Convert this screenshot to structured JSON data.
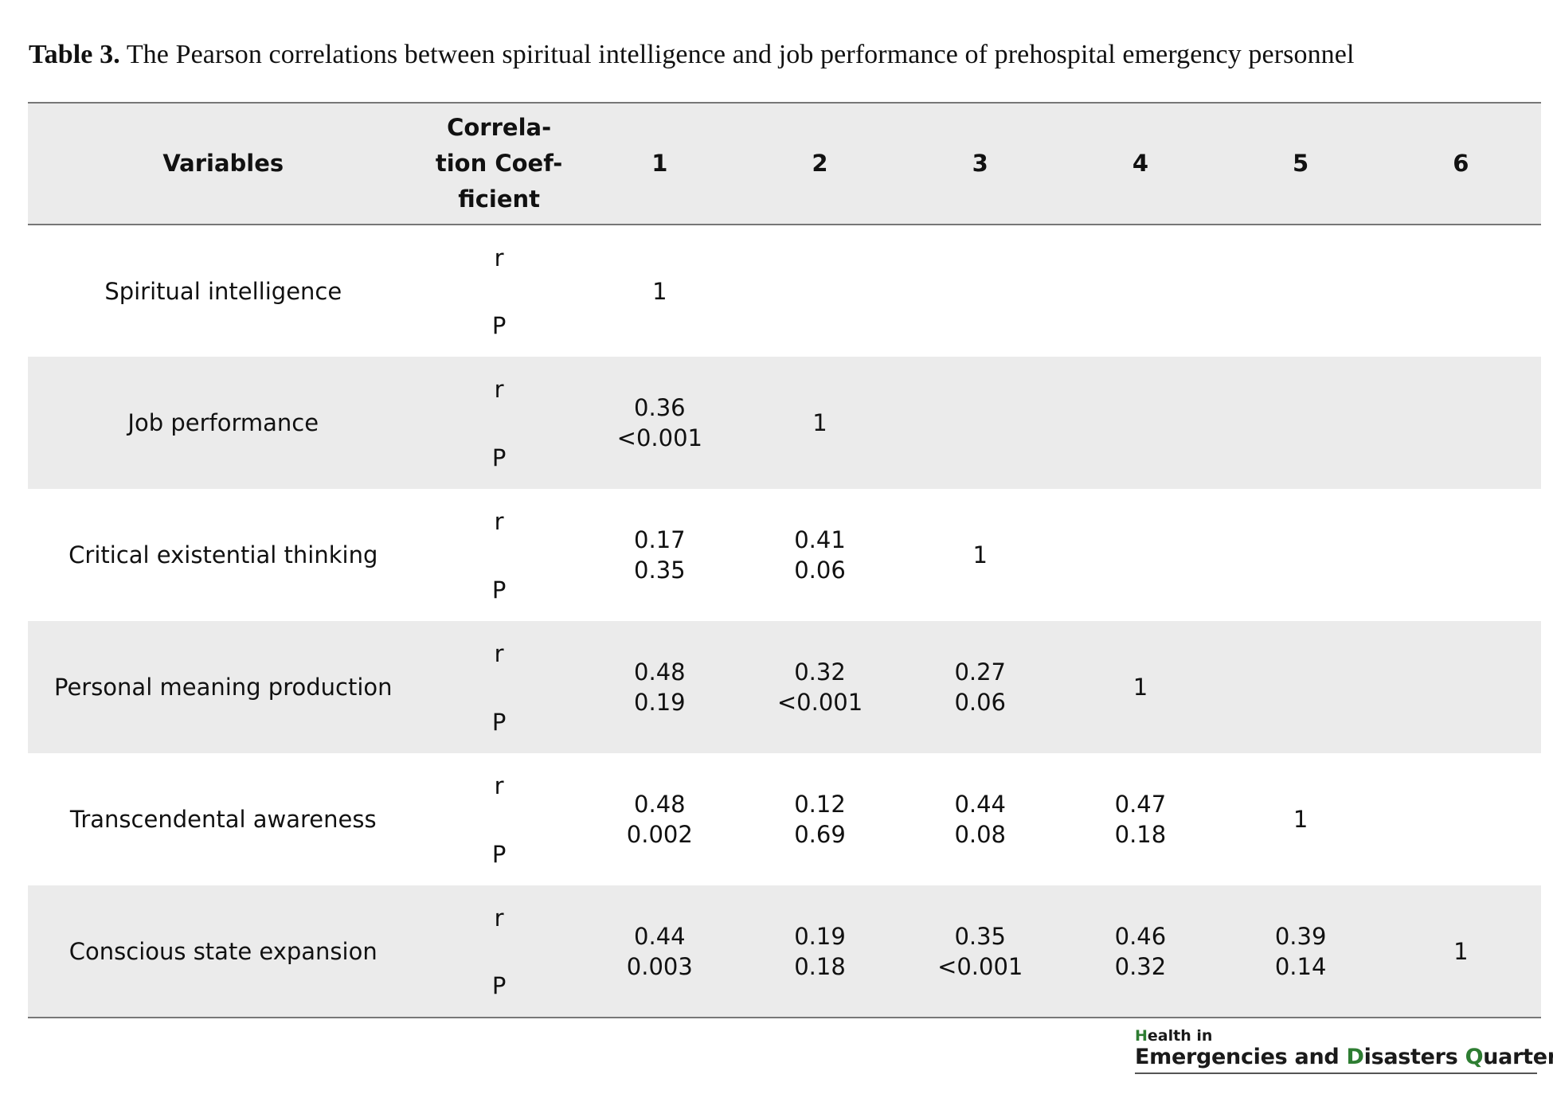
{
  "caption": {
    "label": "Table 3.",
    "text": "The Pearson correlations between spiritual intelligence and job performance of prehospital emergency personnel"
  },
  "table": {
    "headers": {
      "variables": "Variables",
      "coef_line1": "Correla-",
      "coef_line2": "tion Coef-",
      "coef_line3": "ficient",
      "c1": "1",
      "c2": "2",
      "c3": "3",
      "c4": "4",
      "c5": "5",
      "c6": "6"
    },
    "r_label": "r",
    "p_label": "P",
    "rows": [
      {
        "variable": "Spiritual intelligence",
        "cells": [
          {
            "r": "1",
            "p": ""
          }
        ]
      },
      {
        "variable": "Job performance",
        "cells": [
          {
            "r": "0.36",
            "p": "<0.001"
          },
          {
            "r": "1",
            "p": ""
          }
        ]
      },
      {
        "variable": "Critical existential thinking",
        "cells": [
          {
            "r": "0.17",
            "p": "0.35"
          },
          {
            "r": "0.41",
            "p": "0.06"
          },
          {
            "r": "1",
            "p": ""
          }
        ]
      },
      {
        "variable": "Personal meaning production",
        "cells": [
          {
            "r": "0.48",
            "p": "0.19"
          },
          {
            "r": "0.32",
            "p": "<0.001"
          },
          {
            "r": "0.27",
            "p": "0.06"
          },
          {
            "r": "1",
            "p": ""
          }
        ]
      },
      {
        "variable": "Transcendental awareness",
        "cells": [
          {
            "r": "0.48",
            "p": "0.002"
          },
          {
            "r": "0.12",
            "p": "0.69"
          },
          {
            "r": "0.44",
            "p": "0.08"
          },
          {
            "r": "0.47",
            "p": "0.18"
          },
          {
            "r": "1",
            "p": ""
          }
        ]
      },
      {
        "variable": "Conscious state expansion",
        "cells": [
          {
            "r": "0.44",
            "p": "0.003"
          },
          {
            "r": "0.19",
            "p": "0.18"
          },
          {
            "r": "0.35",
            "p": "<0.001"
          },
          {
            "r": "0.46",
            "p": "0.32"
          },
          {
            "r": "0.39",
            "p": "0.14"
          },
          {
            "r": "1",
            "p": ""
          }
        ]
      }
    ]
  },
  "logo": {
    "line1": "Health in",
    "line2": "Emergencies and Disasters Quarterly",
    "accent_color": "#2e7d32"
  }
}
